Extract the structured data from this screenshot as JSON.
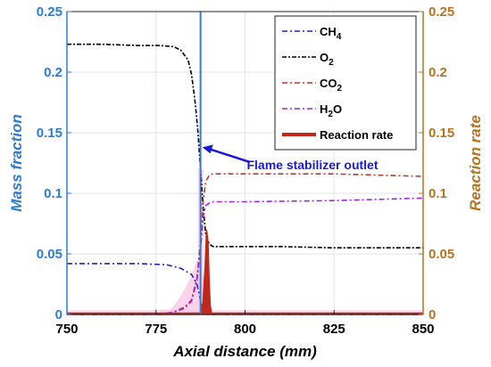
{
  "chart_data": {
    "type": "line",
    "xlabel": "Axial distance (mm)",
    "ylabel_left": "Mass fraction",
    "ylabel_right": "Reaction rate",
    "xlim": [
      750,
      850
    ],
    "ylim_left": [
      0,
      0.25
    ],
    "ylim_right": [
      0,
      0.25
    ],
    "x_ticks": [
      "750",
      "775",
      "800",
      "825",
      "850"
    ],
    "y_ticks_left": [
      "0",
      "0.05",
      "0.1",
      "0.15",
      "0.2",
      "0.25"
    ],
    "y_ticks_right": [
      "0",
      "0.05",
      "0.1",
      "0.15",
      "0.2",
      "0.25"
    ],
    "grid": true,
    "legend_position": "top-right",
    "colors": {
      "ch4": "#1f1fcc",
      "o2": "#000000",
      "co2": "#c0392b",
      "h2o": "#a020f0",
      "reaction": "#c0281b",
      "left_axis": "#2b7bd6",
      "right_axis": "#b8731f",
      "annotation": "#1a1ad6",
      "highlight": "#f8cde8",
      "stabilizer_line": "#3a78c8"
    },
    "series": [
      {
        "name": "CH",
        "sub": "4",
        "key": "ch4",
        "x": [
          750,
          760,
          770,
          778,
          782,
          785,
          786.5,
          787.5,
          788.2,
          788.8,
          789.5,
          790.5,
          850
        ],
        "y": [
          0.042,
          0.042,
          0.042,
          0.041,
          0.038,
          0.033,
          0.025,
          0.012,
          0.004,
          0.001,
          0,
          0,
          0
        ]
      },
      {
        "name": "O",
        "sub": "2",
        "key": "o2",
        "x": [
          750,
          760,
          770,
          776,
          780,
          782,
          784,
          785,
          786,
          786.8,
          787.5,
          788.2,
          789,
          790,
          791,
          800,
          810,
          825,
          840,
          850
        ],
        "y": [
          0.223,
          0.223,
          0.222,
          0.222,
          0.221,
          0.218,
          0.21,
          0.198,
          0.175,
          0.15,
          0.12,
          0.09,
          0.065,
          0.058,
          0.056,
          0.056,
          0.056,
          0.055,
          0.055,
          0.055
        ]
      },
      {
        "name": "CO",
        "sub": "2",
        "key": "co2",
        "x": [
          750,
          776,
          780,
          783,
          785,
          786.5,
          787.5,
          788.3,
          789,
          790,
          791,
          800,
          825,
          850
        ],
        "y": [
          0,
          0,
          0.002,
          0.006,
          0.012,
          0.03,
          0.06,
          0.095,
          0.11,
          0.115,
          0.116,
          0.116,
          0.116,
          0.114
        ]
      },
      {
        "name": "H",
        "sub": "2",
        "tail": "O",
        "key": "h2o",
        "x": [
          750,
          776,
          780,
          783,
          785,
          786.5,
          787.5,
          788.3,
          789,
          790,
          791,
          800,
          825,
          850
        ],
        "y": [
          0,
          0,
          0.002,
          0.005,
          0.011,
          0.028,
          0.055,
          0.082,
          0.09,
          0.092,
          0.093,
          0.093,
          0.094,
          0.096
        ]
      },
      {
        "name": "Reaction rate",
        "key": "reaction",
        "axis": "right",
        "x": [
          750,
          787.5,
          788.2,
          788.8,
          789.2,
          789.6,
          789.9,
          790.2,
          790.6,
          850
        ],
        "y": [
          0,
          0,
          0.01,
          0.04,
          0.07,
          0.06,
          0.03,
          0.008,
          0,
          0
        ]
      }
    ],
    "annotations": [
      {
        "text": "Flame stabilizer outlet",
        "x_point": 787.5,
        "y_point": 0.138
      }
    ],
    "stabilizer_x": 787.5
  }
}
